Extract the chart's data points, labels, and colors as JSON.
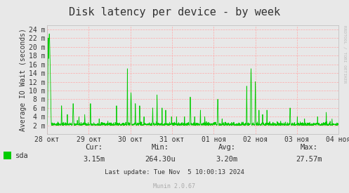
{
  "title": "Disk latency per device - by week",
  "ylabel": "Average IO Wait (seconds)",
  "line_color": "#00cc00",
  "bg_color": "#e8e8e8",
  "plot_bg_color": "#e8e8e8",
  "grid_color": "#ffaaaa",
  "ytick_labels": [
    "2 m",
    "4 m",
    "6 m",
    "8 m",
    "10 m",
    "12 m",
    "14 m",
    "16 m",
    "18 m",
    "20 m",
    "22 m",
    "24 m"
  ],
  "ytick_values": [
    2,
    4,
    6,
    8,
    10,
    12,
    14,
    16,
    18,
    20,
    22,
    24
  ],
  "ymin": 0,
  "ymax": 25,
  "xtick_labels": [
    "28 окт",
    "29 окт",
    "30 окт",
    "31 окт",
    "01 ноя",
    "02 ноя",
    "03 ноя",
    "04 ноя"
  ],
  "legend_label": "sda",
  "legend_color": "#00cc00",
  "cur_label": "Cur:",
  "cur_val": "3.15m",
  "min_label": "Min:",
  "min_val": "264.30u",
  "avg_label": "Avg:",
  "avg_val": "3.20m",
  "max_label": "Max:",
  "max_val": "27.57m",
  "last_update": "Last update: Tue Nov  5 10:00:13 2024",
  "munin_version": "Munin 2.0.67",
  "watermark": "RRDTOOL / TOBI OETIKER",
  "title_fontsize": 11,
  "axis_fontsize": 7,
  "legend_fontsize": 7.5,
  "footer_fontsize": 6.5
}
